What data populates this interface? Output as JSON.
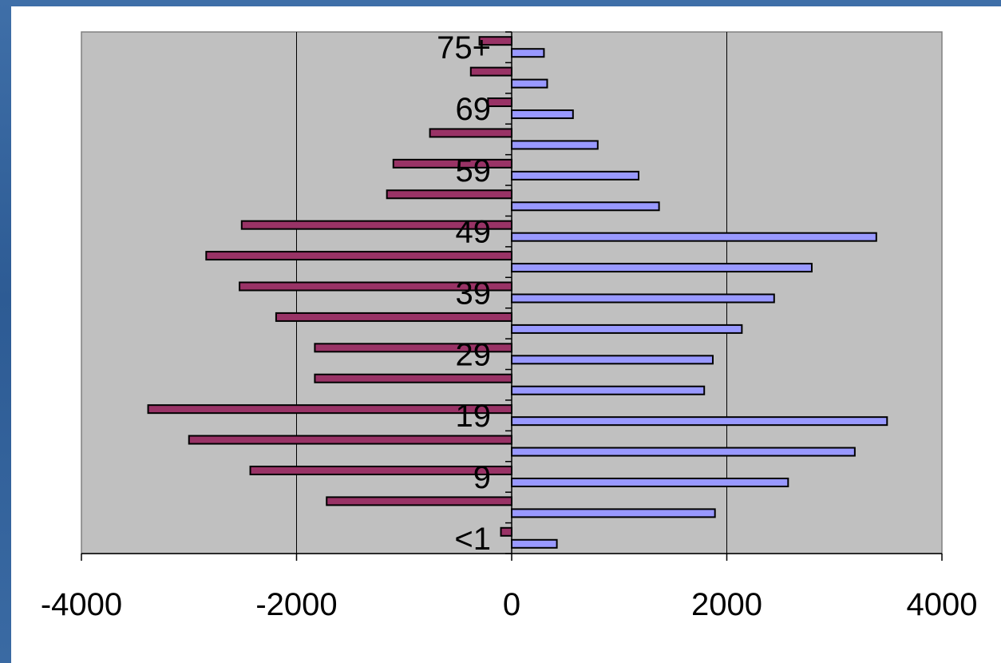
{
  "chart_data": {
    "type": "bar",
    "orientation": "horizontal",
    "categories": [
      "<1",
      "",
      "9",
      "",
      "19",
      "",
      "29",
      "",
      "39",
      "",
      "49",
      "",
      "59",
      "",
      "69",
      "",
      "75+"
    ],
    "series": [
      {
        "values": [
          -100,
          -1720,
          -2430,
          -3000,
          -3380,
          -1830,
          -1830,
          -2190,
          -2530,
          -2840,
          -2510,
          -1160,
          -1100,
          -760,
          -220,
          -380,
          -300
        ]
      },
      {
        "values": [
          420,
          1890,
          2570,
          3190,
          3490,
          1790,
          1870,
          2140,
          2440,
          2790,
          3390,
          1370,
          1180,
          800,
          570,
          330,
          300
        ]
      }
    ],
    "xlim": [
      -4000,
      4000
    ],
    "xticks": [
      -4000,
      -2000,
      0,
      2000,
      4000
    ],
    "xtick_labels": [
      "-4000",
      "-2000",
      "0",
      "2000",
      "4000"
    ],
    "grid": "vertical",
    "legend": "none",
    "colors": {
      "plot_background": "#c0c0c0",
      "left_series": "#993366",
      "right_series": "#9999ff",
      "outline": "#000000",
      "gridline": "#000000"
    }
  }
}
